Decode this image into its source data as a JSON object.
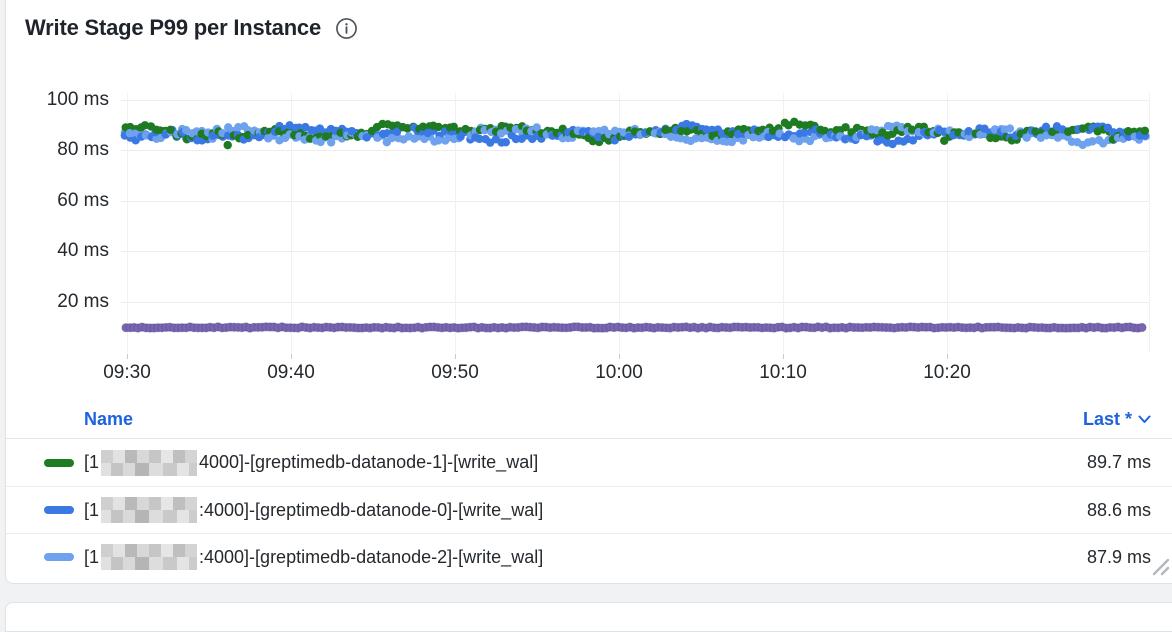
{
  "panel": {
    "title": "Write Stage P99 per Instance"
  },
  "chart_data": {
    "type": "scatter",
    "title": "Write Stage P99 per Instance",
    "xlabel": "",
    "ylabel": "",
    "x_ticks": [
      "09:30",
      "09:40",
      "09:50",
      "10:00",
      "10:10",
      "10:20"
    ],
    "y_tick_ms": [
      100,
      80,
      60,
      40,
      20
    ],
    "y_tick_labels": [
      "100 ms",
      "80 ms",
      "60 ms",
      "40 ms",
      "20 ms"
    ],
    "ylim_ms": [
      0,
      108
    ],
    "grid": true,
    "legend_position": "bottom-table",
    "series": [
      {
        "name": "[1(redacted):4000]-[greptimedb-datanode-1]-[write_wal]",
        "color": "#1e7b22",
        "style": "points",
        "approx_mean_ms": 87.4,
        "approx_range_ms": [
          78,
          93
        ],
        "last_ms": 89.7
      },
      {
        "name": "[1(redacted):4000]-[greptimedb-datanode-0]-[write_wal]",
        "color": "#3a78e3",
        "style": "points",
        "approx_mean_ms": 86.4,
        "approx_range_ms": [
          77.5,
          93
        ],
        "last_ms": 88.6
      },
      {
        "name": "[1(redacted):4000]-[greptimedb-datanode-2]-[write_wal]",
        "color": "#6fa2ee",
        "style": "points",
        "approx_mean_ms": 85.9,
        "approx_range_ms": [
          77.5,
          92.5
        ],
        "last_ms": 87.9
      },
      {
        "name": "",
        "visible_in_legend": false,
        "color": "#7866af",
        "style": "points",
        "approx_mean_ms": 9.7,
        "approx_range_ms": [
          9.3,
          10.1
        ],
        "last_ms": null
      }
    ]
  },
  "legend": {
    "name_header": "Name",
    "last_header": "Last *",
    "rows": [
      {
        "color": "#1e7b22",
        "prefix": "[1",
        "redacted": true,
        "suffix": "4000]-[greptimedb-datanode-1]-[write_wal]",
        "last": "89.7 ms"
      },
      {
        "color": "#3a78e3",
        "prefix": "[1",
        "redacted": true,
        "suffix": ":4000]-[greptimedb-datanode-0]-[write_wal]",
        "last": "88.6 ms"
      },
      {
        "color": "#6fa2ee",
        "prefix": "[1",
        "redacted": true,
        "suffix": ":4000]-[greptimedb-datanode-2]-[write_wal]",
        "last": "87.9 ms"
      }
    ]
  },
  "colors": {
    "link_blue": "#1f62e0",
    "text_dark": "#24292e",
    "grid_line": "#ededef",
    "panel_border": "#dfe2e6",
    "page_background": "#f1f2f4"
  }
}
